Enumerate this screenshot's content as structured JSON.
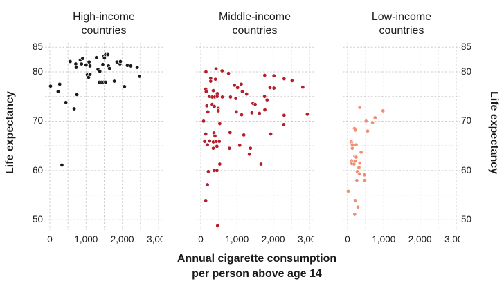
{
  "chart_data": {
    "type": "scatter",
    "layout": "three small-multiple scatter panels sharing x and y axes, y labels on left and right",
    "title": "",
    "xlabel": "Annual cigarette consumption\nper person above age 14",
    "ylabel": "Life expectancy",
    "xlim": [
      0,
      3000
    ],
    "ylim": [
      50,
      85
    ],
    "grid": true,
    "x_grid_step": 500,
    "y_grid_step": 5,
    "x_tick_values": [
      0,
      1000,
      2000,
      3000
    ],
    "x_tick_labels": [
      "0",
      "1,000",
      "2,000",
      "3,000"
    ],
    "y_tick_values": [
      85,
      80,
      70,
      60,
      50
    ],
    "y_tick_labels": [
      "85",
      "80",
      "70",
      "60",
      "50"
    ],
    "colors": {
      "high_income": "#1a1a1a",
      "middle_income": "#b51f2b",
      "low_income": "#f28e74",
      "gridline": "#cbcbcb",
      "text": "#1a1a1a"
    },
    "panels": [
      {
        "id": "high-income",
        "title": "High-income\ncountries",
        "color": "#1a1a1a",
        "points": [
          [
            19,
            77.1
          ],
          [
            272,
            77.5
          ],
          [
            228,
            76.0
          ],
          [
            333,
            61.1
          ],
          [
            443,
            73.8
          ],
          [
            671,
            72.5
          ],
          [
            747,
            75.4
          ],
          [
            563,
            82.1
          ],
          [
            715,
            81.6
          ],
          [
            728,
            80.9
          ],
          [
            842,
            82.4
          ],
          [
            874,
            81.6
          ],
          [
            905,
            82.7
          ],
          [
            1000,
            81.4
          ],
          [
            1082,
            82.0
          ],
          [
            1108,
            81.2
          ],
          [
            1032,
            79.4
          ],
          [
            1070,
            78.9
          ],
          [
            1108,
            79.5
          ],
          [
            1285,
            82.9
          ],
          [
            1329,
            80.5
          ],
          [
            1380,
            80.1
          ],
          [
            1462,
            81.5
          ],
          [
            1494,
            83.2
          ],
          [
            1507,
            82.8
          ],
          [
            1538,
            83.5
          ],
          [
            1601,
            83.5
          ],
          [
            1620,
            81.2
          ],
          [
            1646,
            80.7
          ],
          [
            1367,
            77.9
          ],
          [
            1430,
            77.9
          ],
          [
            1487,
            77.9
          ],
          [
            1538,
            77.9
          ],
          [
            1779,
            78.1
          ],
          [
            1854,
            82.0
          ],
          [
            1937,
            81.6
          ],
          [
            1949,
            82.1
          ],
          [
            2060,
            77.0
          ],
          [
            2139,
            81.3
          ],
          [
            2234,
            81.2
          ],
          [
            2411,
            80.9
          ],
          [
            2475,
            79.1
          ]
        ]
      },
      {
        "id": "middle-income",
        "title": "Middle-income\ncountries",
        "color": "#b51f2b",
        "points": [
          [
            143,
            80.0
          ],
          [
            422,
            80.6
          ],
          [
            588,
            80.2
          ],
          [
            766,
            79.7
          ],
          [
            1764,
            79.3
          ],
          [
            2020,
            79.2
          ],
          [
            2300,
            78.6
          ],
          [
            2520,
            78.2
          ],
          [
            2815,
            76.9
          ],
          [
            273,
            78.7
          ],
          [
            273,
            78.1
          ],
          [
            404,
            78.5
          ],
          [
            930,
            77.3
          ],
          [
            1117,
            77.5
          ],
          [
            1016,
            76.8
          ],
          [
            1147,
            76.0
          ],
          [
            1265,
            75.5
          ],
          [
            1910,
            76.8
          ],
          [
            2020,
            76.7
          ],
          [
            137,
            76.5
          ],
          [
            149,
            76.0
          ],
          [
            345,
            76.2
          ],
          [
            457,
            75.6
          ],
          [
            244,
            75.0
          ],
          [
            315,
            74.9
          ],
          [
            386,
            74.9
          ],
          [
            451,
            75.0
          ],
          [
            594,
            74.9
          ],
          [
            820,
            74.9
          ],
          [
            968,
            74.6
          ],
          [
            1760,
            75.0
          ],
          [
            1830,
            74.3
          ],
          [
            1442,
            73.6
          ],
          [
            1501,
            73.4
          ],
          [
            166,
            73.1
          ],
          [
            315,
            73.4
          ],
          [
            374,
            73.0
          ],
          [
            481,
            72.6
          ],
          [
            481,
            72.1
          ],
          [
            196,
            71.9
          ],
          [
            980,
            71.9
          ],
          [
            1127,
            71.3
          ],
          [
            1412,
            71.7
          ],
          [
            1620,
            71.6
          ],
          [
            1768,
            72.3
          ],
          [
            2300,
            71.2
          ],
          [
            2940,
            71.4
          ],
          [
            77,
            70.0
          ],
          [
            523,
            69.5
          ],
          [
            2290,
            69.3
          ],
          [
            137,
            67.4
          ],
          [
            363,
            67.6
          ],
          [
            392,
            67.0
          ],
          [
            808,
            67.7
          ],
          [
            1188,
            67.2
          ],
          [
            1931,
            67.4
          ],
          [
            107,
            65.9
          ],
          [
            244,
            66.0
          ],
          [
            345,
            65.8
          ],
          [
            433,
            65.9
          ],
          [
            510,
            65.9
          ],
          [
            184,
            65.2
          ],
          [
            345,
            64.5
          ],
          [
            446,
            64.9
          ],
          [
            789,
            64.5
          ],
          [
            1074,
            65.1
          ],
          [
            1371,
            64.5
          ],
          [
            1341,
            63.3
          ],
          [
            1662,
            61.3
          ],
          [
            523,
            61.3
          ],
          [
            208,
            59.8
          ],
          [
            374,
            60.0
          ],
          [
            446,
            60.0
          ],
          [
            184,
            57.1
          ],
          [
            137,
            53.9
          ],
          [
            464,
            48.8
          ]
        ]
      },
      {
        "id": "low-income",
        "title": "Low-income\ncountries",
        "color": "#f28e74",
        "points": [
          [
            339,
            72.8
          ],
          [
            980,
            72.1
          ],
          [
            760,
            70.7
          ],
          [
            510,
            70.0
          ],
          [
            690,
            69.7
          ],
          [
            190,
            68.5
          ],
          [
            215,
            68.2
          ],
          [
            555,
            68.0
          ],
          [
            101,
            65.9
          ],
          [
            119,
            65.5
          ],
          [
            131,
            65.2
          ],
          [
            238,
            65.2
          ],
          [
            131,
            64.5
          ],
          [
            375,
            63.7
          ],
          [
            202,
            62.9
          ],
          [
            238,
            62.7
          ],
          [
            119,
            62.0
          ],
          [
            167,
            61.9
          ],
          [
            208,
            61.9
          ],
          [
            119,
            61.4
          ],
          [
            179,
            61.3
          ],
          [
            339,
            61.5
          ],
          [
            315,
            60.6
          ],
          [
            268,
            59.8
          ],
          [
            327,
            59.3
          ],
          [
            464,
            59.1
          ],
          [
            256,
            58.0
          ],
          [
            476,
            58.0
          ],
          [
            18,
            55.8
          ],
          [
            214,
            53.9
          ],
          [
            286,
            52.6
          ],
          [
            196,
            51.1
          ]
        ]
      }
    ]
  }
}
